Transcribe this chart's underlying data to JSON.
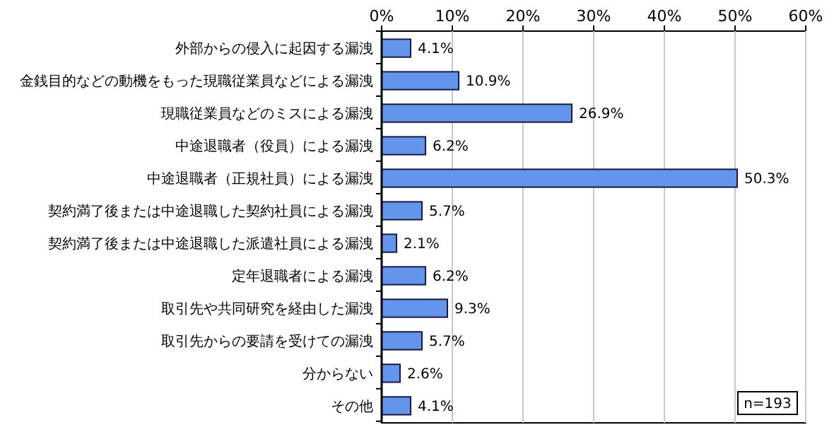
{
  "chart_data": {
    "type": "bar",
    "orientation": "horizontal",
    "categories": [
      "外部からの侵入に起因する漏洩",
      "金銭目的などの動機をもった現職従業員などによる漏洩",
      "現職従業員などのミスによる漏洩",
      "中途退職者（役員）による漏洩",
      "中途退職者（正規社員）による漏洩",
      "契約満了後または中途退職した契約社員による漏洩",
      "契約満了後または中途退職した派遣社員による漏洩",
      "定年退職者による漏洩",
      "取引先や共同研究を経由した漏洩",
      "取引先からの要請を受けての漏洩",
      "分からない",
      "その他"
    ],
    "values": [
      4.1,
      10.9,
      26.9,
      6.2,
      50.3,
      5.7,
      2.1,
      6.2,
      9.3,
      5.7,
      2.6,
      4.1
    ],
    "value_labels": [
      "4.1%",
      "10.9%",
      "26.9%",
      "6.2%",
      "50.3%",
      "5.7%",
      "2.1%",
      "6.2%",
      "9.3%",
      "5.7%",
      "2.6%",
      "4.1%"
    ],
    "color": "#6495ed",
    "xlim": [
      0,
      60
    ],
    "xticks": [
      {
        "value": 0,
        "label": "0%"
      },
      {
        "value": 10,
        "label": "10%"
      },
      {
        "value": 20,
        "label": "20%"
      },
      {
        "value": 30,
        "label": "30%"
      },
      {
        "value": 40,
        "label": "40%"
      },
      {
        "value": 50,
        "label": "50%"
      },
      {
        "value": 60,
        "label": "60%"
      }
    ],
    "grid": "x",
    "annotations": [
      "n=193"
    ]
  }
}
